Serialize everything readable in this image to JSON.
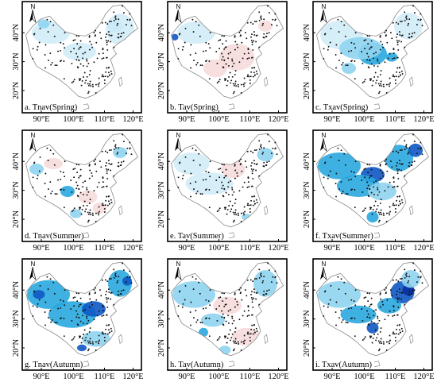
{
  "palette": {
    "light": "#d2ecf7",
    "mid": "#8fd4f0",
    "strong": "#29a7de",
    "deep": "#0e58c4",
    "navy": "#0a2fa0",
    "pink": "#f7dcdc",
    "border": "#8a8a8a",
    "dot": "#111111"
  },
  "axis": {
    "x_labels": [
      "90°E",
      "100°E",
      "110°E",
      "120°E"
    ],
    "y_labels": [
      "40°N",
      "30°N",
      "20°N"
    ]
  },
  "north_arrow": "N",
  "panels": [
    {
      "id": "a",
      "caption": "a. Tnav(Spring)",
      "shading": [
        [
          "light",
          0.24,
          0.28,
          0.16,
          0.1
        ],
        [
          "mid",
          0.78,
          0.22,
          0.07,
          0.06
        ],
        [
          "light",
          0.82,
          0.25,
          0.12,
          0.14
        ],
        [
          "light",
          0.48,
          0.45,
          0.14,
          0.08
        ],
        [
          "mid",
          0.18,
          0.2,
          0.05,
          0.04
        ]
      ]
    },
    {
      "id": "b",
      "caption": "b. Tav(Spring)",
      "shading": [
        [
          "light",
          0.24,
          0.28,
          0.16,
          0.1
        ],
        [
          "deep",
          0.06,
          0.32,
          0.03,
          0.03
        ],
        [
          "pink",
          0.58,
          0.5,
          0.15,
          0.12
        ],
        [
          "pink",
          0.4,
          0.6,
          0.1,
          0.08
        ],
        [
          "light",
          0.75,
          0.78,
          0.05,
          0.04
        ],
        [
          "pink",
          0.82,
          0.22,
          0.06,
          0.05
        ]
      ]
    },
    {
      "id": "c",
      "caption": "c. Txav(Spring)",
      "shading": [
        [
          "light",
          0.24,
          0.3,
          0.18,
          0.13
        ],
        [
          "strong",
          0.5,
          0.47,
          0.12,
          0.1
        ],
        [
          "mid",
          0.4,
          0.42,
          0.18,
          0.1
        ],
        [
          "mid",
          0.3,
          0.6,
          0.06,
          0.05
        ],
        [
          "light",
          0.8,
          0.22,
          0.12,
          0.12
        ],
        [
          "strong",
          0.66,
          0.5,
          0.05,
          0.04
        ],
        [
          "mid",
          0.78,
          0.8,
          0.04,
          0.03
        ]
      ]
    },
    {
      "id": "d",
      "caption": "d. Tnav(Summer)",
      "shading": [
        [
          "mid",
          0.12,
          0.35,
          0.06,
          0.05
        ],
        [
          "pink",
          0.26,
          0.3,
          0.08,
          0.05
        ],
        [
          "strong",
          0.38,
          0.55,
          0.06,
          0.05
        ],
        [
          "pink",
          0.65,
          0.7,
          0.06,
          0.05
        ],
        [
          "pink",
          0.55,
          0.6,
          0.08,
          0.06
        ],
        [
          "mid",
          0.82,
          0.2,
          0.06,
          0.05
        ],
        [
          "mid",
          0.45,
          0.75,
          0.05,
          0.04
        ],
        [
          "mid",
          0.7,
          0.9,
          0.04,
          0.03
        ]
      ]
    },
    {
      "id": "e",
      "caption": "e. Tav(Summer)",
      "shading": [
        [
          "light",
          0.2,
          0.3,
          0.15,
          0.1
        ],
        [
          "light",
          0.35,
          0.48,
          0.2,
          0.1
        ],
        [
          "pink",
          0.55,
          0.35,
          0.1,
          0.08
        ],
        [
          "mid",
          0.82,
          0.22,
          0.07,
          0.06
        ],
        [
          "mid",
          0.66,
          0.78,
          0.04,
          0.03
        ]
      ]
    },
    {
      "id": "f",
      "caption": "f. Txav(Summer)",
      "shading": [
        [
          "strong",
          0.22,
          0.32,
          0.18,
          0.12
        ],
        [
          "deep",
          0.5,
          0.4,
          0.1,
          0.07
        ],
        [
          "strong",
          0.38,
          0.5,
          0.18,
          0.1
        ],
        [
          "strong",
          0.72,
          0.25,
          0.12,
          0.12
        ],
        [
          "deep",
          0.86,
          0.18,
          0.06,
          0.06
        ],
        [
          "mid",
          0.58,
          0.55,
          0.12,
          0.08
        ],
        [
          "strong",
          0.5,
          0.78,
          0.05,
          0.05
        ]
      ]
    },
    {
      "id": "g",
      "caption": "g. Tnav(Autumn)",
      "shading": [
        [
          "strong",
          0.22,
          0.32,
          0.18,
          0.13
        ],
        [
          "deep",
          0.14,
          0.32,
          0.05,
          0.04
        ],
        [
          "strong",
          0.42,
          0.5,
          0.2,
          0.12
        ],
        [
          "deep",
          0.6,
          0.45,
          0.1,
          0.07
        ],
        [
          "strong",
          0.82,
          0.22,
          0.1,
          0.12
        ],
        [
          "deep",
          0.88,
          0.2,
          0.04,
          0.04
        ],
        [
          "deep",
          0.5,
          0.8,
          0.04,
          0.03
        ],
        [
          "mid",
          0.62,
          0.72,
          0.12,
          0.07
        ]
      ]
    },
    {
      "id": "h",
      "caption": "h. Tav(Autumn)",
      "shading": [
        [
          "mid",
          0.22,
          0.32,
          0.18,
          0.12
        ],
        [
          "pink",
          0.5,
          0.42,
          0.12,
          0.08
        ],
        [
          "mid",
          0.38,
          0.55,
          0.1,
          0.06
        ],
        [
          "strong",
          0.3,
          0.66,
          0.04,
          0.04
        ],
        [
          "mid",
          0.82,
          0.22,
          0.1,
          0.12
        ],
        [
          "pink",
          0.66,
          0.7,
          0.12,
          0.08
        ],
        [
          "mid",
          0.48,
          0.82,
          0.05,
          0.04
        ]
      ]
    },
    {
      "id": "i",
      "caption": "i. Txav(Autumn)",
      "shading": [
        [
          "mid",
          0.22,
          0.32,
          0.18,
          0.12
        ],
        [
          "deep",
          0.75,
          0.3,
          0.1,
          0.1
        ],
        [
          "navy",
          0.8,
          0.28,
          0.05,
          0.05
        ],
        [
          "deep",
          0.5,
          0.62,
          0.05,
          0.05
        ],
        [
          "strong",
          0.38,
          0.5,
          0.15,
          0.08
        ],
        [
          "strong",
          0.64,
          0.42,
          0.1,
          0.07
        ],
        [
          "mid",
          0.82,
          0.18,
          0.08,
          0.08
        ]
      ]
    }
  ]
}
